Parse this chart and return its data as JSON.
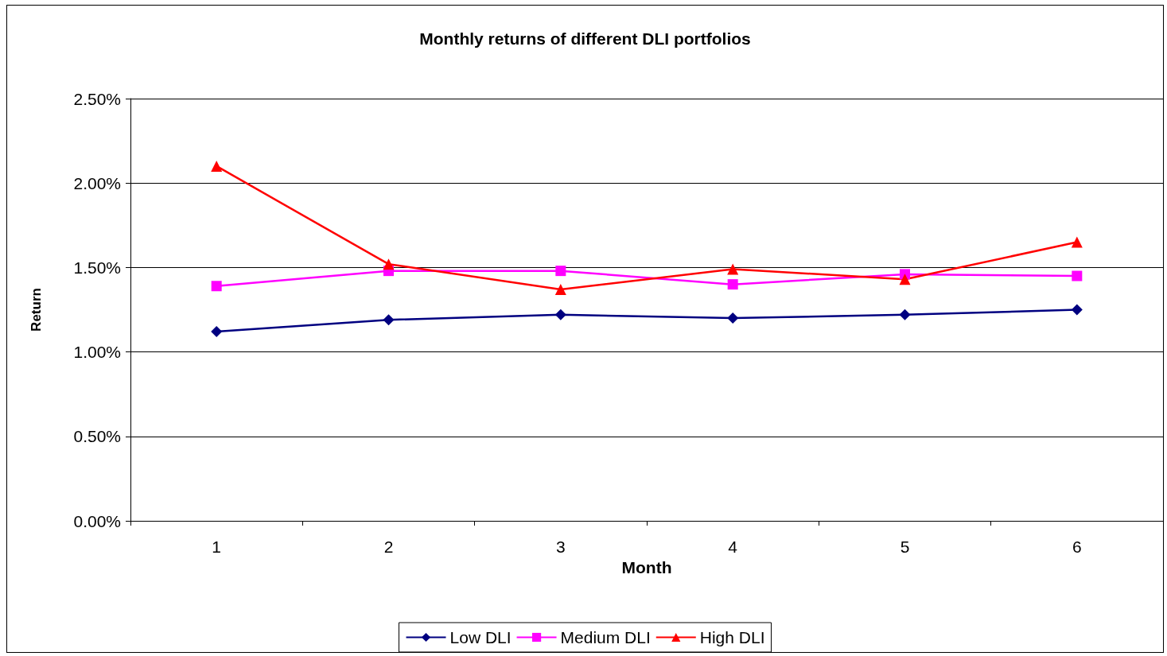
{
  "chart_data": {
    "type": "line",
    "title": "Monthly returns of different DLI portfolios",
    "xlabel": "Month",
    "ylabel": "Return",
    "categories": [
      "1",
      "2",
      "3",
      "4",
      "5",
      "6"
    ],
    "series": [
      {
        "name": "Low DLI",
        "color": "#000080",
        "marker": "diamond",
        "values": [
          1.12,
          1.19,
          1.22,
          1.2,
          1.22,
          1.25
        ]
      },
      {
        "name": "Medium DLI",
        "color": "#ff00ff",
        "marker": "square",
        "values": [
          1.39,
          1.48,
          1.48,
          1.4,
          1.46,
          1.45
        ]
      },
      {
        "name": "High DLI",
        "color": "#ff0000",
        "marker": "triangle",
        "values": [
          2.1,
          1.52,
          1.37,
          1.49,
          1.43,
          1.65
        ]
      }
    ],
    "ylim": [
      0,
      2.5
    ],
    "yticks": [
      {
        "value": 0,
        "label": "0.00%"
      },
      {
        "value": 0.5,
        "label": "0.50%"
      },
      {
        "value": 1,
        "label": "1.00%"
      },
      {
        "value": 1.5,
        "label": "1.50%"
      },
      {
        "value": 2,
        "label": "2.00%"
      },
      {
        "value": 2.5,
        "label": "2.50%"
      }
    ],
    "grid": "y",
    "legend": "bottom",
    "line_style": "solid"
  }
}
